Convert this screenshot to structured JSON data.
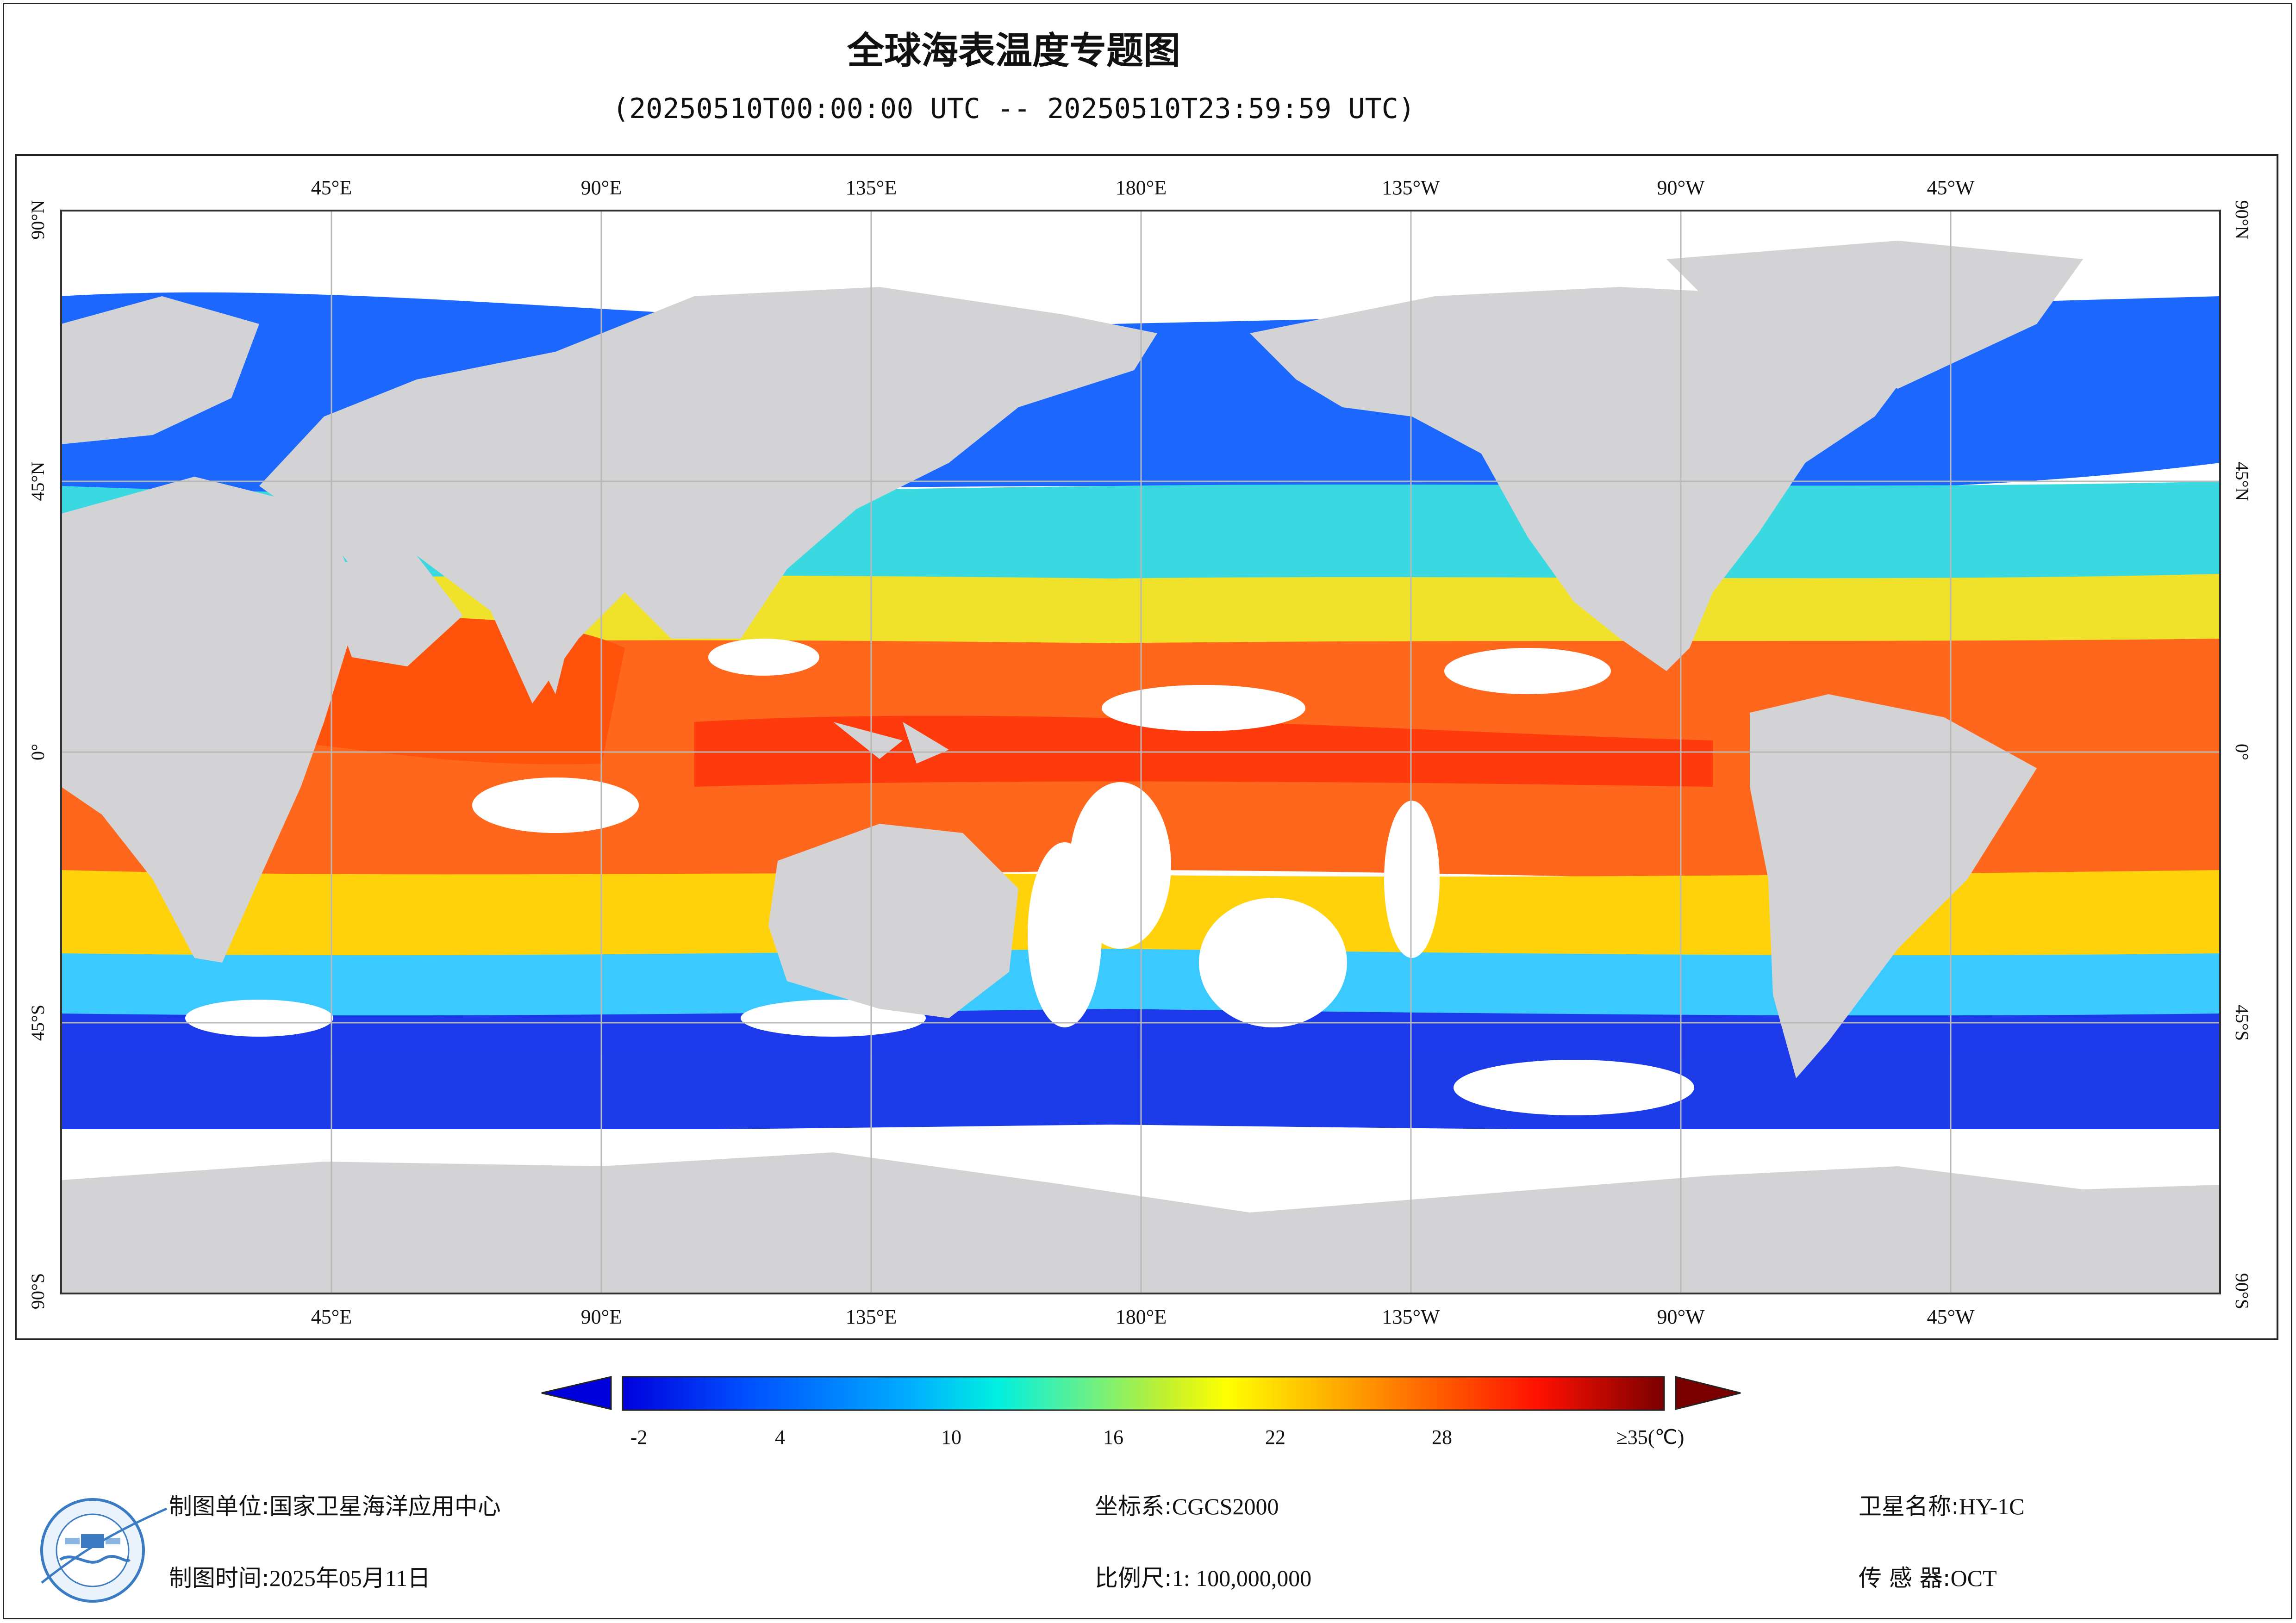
{
  "title": "全球海表温度专题图",
  "subtitle": "(20250510T00:00:00 UTC -- 20250510T23:59:59 UTC)",
  "map": {
    "top_lon_labels": [
      "45°E",
      "90°E",
      "135°E",
      "180°E",
      "135°W",
      "90°W",
      "45°W"
    ],
    "bottom_lon_labels": [
      "45°E",
      "90°E",
      "135°E",
      "180°E",
      "135°W",
      "90°W",
      "45°W"
    ],
    "left_lat_labels": [
      "90°N",
      "45°N",
      "0°",
      "45°S",
      "90°S"
    ],
    "right_lat_labels": [
      "90°N",
      "45°N",
      "0°",
      "45°S",
      "90°S"
    ],
    "colors": {
      "land": "#d3d3d5",
      "cloud_nodata": "#ffffff",
      "grid": "#b8b8b8"
    }
  },
  "colorbar": {
    "tick_labels": [
      "-2",
      "4",
      "10",
      "16",
      "22",
      "28",
      "≥35(℃)"
    ],
    "min": -2,
    "max": 35,
    "colors": [
      "#0000dd",
      "#0050ff",
      "#00b0ff",
      "#00f0e0",
      "#60f090",
      "#c0f030",
      "#ffff00",
      "#ffb000",
      "#ff6000",
      "#ff1000",
      "#c00000",
      "#7a0000"
    ]
  },
  "footer": {
    "unit_label": "制图单位:",
    "unit_value": "国家卫星海洋应用中心",
    "time_label": "制图时间:",
    "time_value": "2025年05月11日",
    "crs_label": "坐标系:",
    "crs_value": "CGCS2000",
    "scale_label": "比例尺:",
    "scale_value": "1: 100,000,000",
    "satellite_label": "卫星名称:",
    "satellite_value": "HY-1C",
    "sensor_label": "传 感 器:",
    "sensor_value": "OCT"
  }
}
